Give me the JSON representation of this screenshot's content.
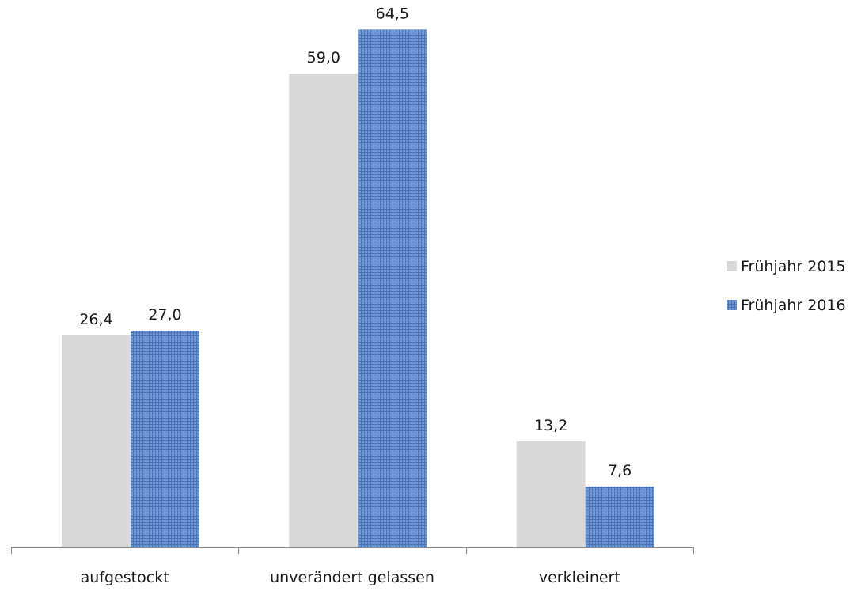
{
  "chart_data": {
    "type": "bar",
    "title": "",
    "xlabel": "",
    "ylabel": "",
    "categories": [
      "aufgestockt",
      "unverändert gelassen",
      "verkleinert"
    ],
    "series": [
      {
        "name": "Frühjahr 2015",
        "values": [
          26.4,
          59.0,
          13.2
        ],
        "labels": [
          "26,4",
          "59,0",
          "13,2"
        ],
        "color": "#d9d9d9"
      },
      {
        "name": "Frühjahr 2016",
        "values": [
          27.0,
          64.5,
          7.6
        ],
        "labels": [
          "27,0",
          "64,5",
          "7,6"
        ],
        "color": "#5b83c6"
      }
    ],
    "ylim": [
      0,
      70
    ],
    "y_axis_visible": false,
    "grid": false,
    "legend_position": "right",
    "data_labels": true
  }
}
